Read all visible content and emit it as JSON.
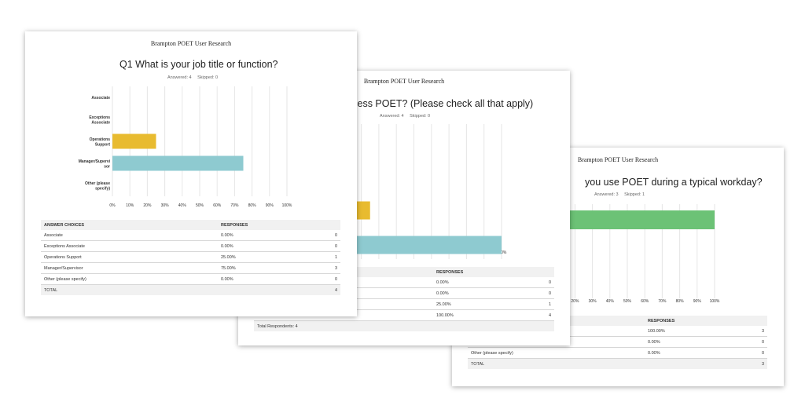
{
  "colors": {
    "yellow": "#e8bb30",
    "teal": "#8ecad0",
    "green": "#6cc276",
    "grid": "#e6e6e6"
  },
  "page1": {
    "header": "Brampton POET User Research",
    "title": "Q1 What is your job title or function?",
    "answered": "Answered: 4",
    "skipped": "Skipped: 0",
    "table": {
      "col1": "ANSWER CHOICES",
      "col2": "RESPONSES",
      "rows": [
        {
          "choice": "Associate",
          "pct": "0.00%",
          "count": "0"
        },
        {
          "choice": "Exceptions Associate",
          "pct": "0.00%",
          "count": "0"
        },
        {
          "choice": "Operations Support",
          "pct": "25.00%",
          "count": "1"
        },
        {
          "choice": "Manager/Supervisor",
          "pct": "75.00%",
          "count": "3"
        },
        {
          "choice": "Other (please specify)",
          "pct": "0.00%",
          "count": "0"
        }
      ],
      "total_label": "TOTAL",
      "total_count": "4"
    }
  },
  "page2": {
    "header": "Brampton POET User Research",
    "title": "ccess POET? (Please check all that apply)",
    "answered": "Answered: 4",
    "skipped": "Skipped: 0",
    "table": {
      "col2": "RESPONSES",
      "rows": [
        {
          "pct": "0.00%",
          "count": "0"
        },
        {
          "pct": "0.00%",
          "count": "0"
        },
        {
          "pct": "25.00%",
          "count": "1"
        },
        {
          "pct": "100.00%",
          "count": "4"
        }
      ],
      "total_label": "Total Respondents: 4"
    }
  },
  "page3": {
    "header": "Brampton POET User Research",
    "title": "you use POET during a typical workday?",
    "answered": "Answered: 3",
    "skipped": "Skipped: 1",
    "table": {
      "col2": "RESPONSES",
      "rows": [
        {
          "choice": "",
          "pct": "100.00%",
          "count": "3"
        },
        {
          "choice": "",
          "pct": "0.00%",
          "count": "0"
        },
        {
          "choice": "Other (please specify)",
          "pct": "0.00%",
          "count": "0"
        }
      ],
      "total_label": "TOTAL",
      "total_count": "3"
    }
  },
  "chart_data": [
    {
      "type": "bar",
      "orientation": "horizontal",
      "categories": [
        "Associate",
        "Exceptions Associate",
        "Operations Support",
        "Manager/Supervisor",
        "Other (please specify)"
      ],
      "category_labels": [
        [
          "Associate"
        ],
        [
          "Exceptions",
          "Associate"
        ],
        [
          "Operations",
          "Support"
        ],
        [
          "Manager/Supervi",
          "sor"
        ],
        [
          "Other (please",
          "specify)"
        ]
      ],
      "values": [
        0,
        0,
        25,
        75,
        0
      ],
      "bar_colors": [
        "#e8bb30",
        "#e8bb30",
        "#e8bb30",
        "#8ecad0",
        "#8ecad0"
      ],
      "xlim": [
        0,
        100
      ],
      "xticks": [
        "0%",
        "10%",
        "20%",
        "30%",
        "40%",
        "50%",
        "60%",
        "70%",
        "80%",
        "90%",
        "100%"
      ],
      "grid": true
    },
    {
      "type": "bar",
      "orientation": "horizontal",
      "partial": "left portion of chart hidden behind first page",
      "values": [
        0,
        0,
        25,
        100
      ],
      "xlim": [
        0,
        100
      ],
      "visible_xticks": [
        "20%",
        "30%",
        "40%",
        "50%",
        "60%",
        "70%",
        "80%",
        "90%",
        "100%"
      ],
      "grid": true
    },
    {
      "type": "bar",
      "orientation": "horizontal",
      "partial": "left portion of chart hidden behind second page",
      "values": [
        100,
        0,
        0
      ],
      "xlim": [
        0,
        100
      ],
      "visible_xticks": [
        "20%",
        "30%",
        "40%",
        "50%",
        "60%",
        "70%",
        "80%",
        "90%",
        "100%"
      ],
      "grid": true
    }
  ]
}
